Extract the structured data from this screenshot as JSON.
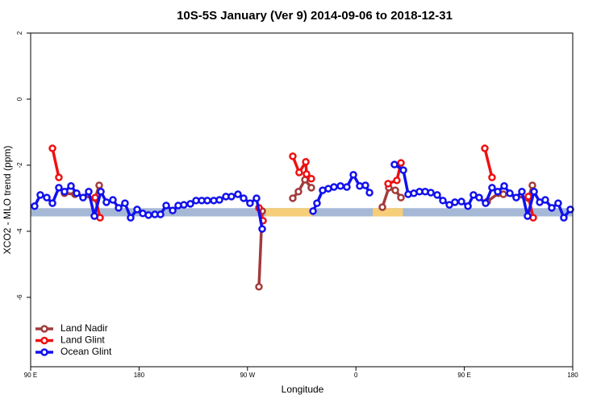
{
  "chart_data": {
    "type": "line",
    "title": "10S-5S January (Ver 9)   2014-09-06 to 2018-12-31",
    "xlabel": "Longitude",
    "ylabel": "XCO2 - MLO trend (ppm)",
    "xlim": [
      90,
      540
    ],
    "ylim": [
      -8.1,
      2
    ],
    "xticks": [
      {
        "value": 90,
        "label": "90 E"
      },
      180,
      {
        "value": 270,
        "label": "90 W"
      },
      {
        "value": 360,
        "label": "0"
      },
      {
        "value": 450,
        "label": "90 E"
      },
      {
        "value": 540,
        "label": "180"
      }
    ],
    "yticks": [
      2,
      0,
      -2,
      -4,
      -6
    ],
    "band": {
      "ylim": [
        -3.55,
        -3.3
      ],
      "color": "#a5b8d6",
      "land_color": "#f6cd78",
      "land_regions": [
        [
          285,
          324
        ],
        [
          374,
          399
        ]
      ]
    },
    "legend": "bottom-left",
    "series": [
      {
        "name": "Land Nadir",
        "color": "#a23b3b",
        "x": [
          118.1,
          126.8,
          143.6,
          146.9,
          null,
          279.5,
          282.2,
          null,
          307.6,
          312.3,
          317.7,
          323.0,
          null,
          382.0,
          387.3,
          392.7,
          397.4,
          null,
          469.0,
          478.4,
          482.4,
          503.2,
          506.5
        ],
        "values": [
          -2.85,
          -2.88,
          -3.0,
          -2.61,
          null,
          -5.68,
          -3.39,
          null,
          -3.0,
          -2.8,
          -2.44,
          -2.68,
          null,
          -3.27,
          -2.68,
          -2.76,
          -2.98,
          null,
          -3.1,
          -2.85,
          -2.88,
          -3.0,
          -2.61
        ]
      },
      {
        "name": "Land Glint",
        "color": "#ee1111",
        "x": [
          108.1,
          113.4,
          null,
          143.6,
          147.6,
          null,
          279.5,
          282.9,
          null,
          307.6,
          312.9,
          318.4,
          319.0,
          323.0,
          null,
          386.7,
          394.0,
          397.4,
          null,
          467.0,
          473.0,
          null,
          503.2,
          507.2
        ],
        "values": [
          -1.49,
          -2.37,
          null,
          -2.98,
          -3.59,
          null,
          -3.29,
          -3.68,
          null,
          -1.73,
          -2.22,
          -1.9,
          -2.27,
          -2.41,
          null,
          -2.56,
          -2.46,
          -1.93,
          null,
          -1.49,
          -2.37,
          null,
          -2.95,
          -3.59
        ]
      },
      {
        "name": "Ocean Glint",
        "color": "#1111ee",
        "x": [
          93.3,
          98.0,
          103.4,
          108.1,
          113.4,
          118.1,
          123.5,
          128.2,
          133.5,
          138.2,
          142.9,
          148.3,
          152.9,
          158.3,
          163.0,
          168.3,
          173.0,
          178.4,
          183.1,
          187.8,
          193.1,
          197.8,
          202.5,
          207.9,
          212.5,
          217.2,
          222.6,
          227.3,
          232.0,
          236.7,
          242.0,
          246.7,
          252.1,
          256.7,
          262.1,
          266.8,
          272.1,
          277.5,
          282.2,
          null,
          324.4,
          327.7,
          332.4,
          337.1,
          341.8,
          347.2,
          352.5,
          357.9,
          363.2,
          367.9,
          371.3,
          null,
          392.0,
          399.4,
          403.4,
          408.1,
          412.8,
          417.5,
          422.2,
          427.5,
          432.2,
          437.6,
          442.2,
          447.6,
          453.0,
          457.6,
          462.3,
          467.7,
          473.0,
          477.7,
          483.1,
          487.8,
          493.1,
          497.8,
          502.5,
          507.9,
          512.6,
          517.2,
          522.6,
          527.9,
          532.6,
          538.0
        ],
        "values": [
          -3.24,
          -2.9,
          -2.98,
          -3.15,
          -2.68,
          -2.8,
          -2.63,
          -2.85,
          -2.98,
          -2.8,
          -3.54,
          -2.8,
          -3.12,
          -3.05,
          -3.29,
          -3.15,
          -3.59,
          -3.34,
          -3.46,
          -3.51,
          -3.49,
          -3.49,
          -3.22,
          -3.37,
          -3.22,
          -3.2,
          -3.17,
          -3.07,
          -3.07,
          -3.07,
          -3.07,
          -3.05,
          -2.95,
          -2.95,
          -2.88,
          -3.0,
          -3.15,
          -3.0,
          -3.93,
          null,
          -3.39,
          -3.15,
          -2.76,
          -2.71,
          -2.66,
          -2.63,
          -2.66,
          -2.29,
          -2.63,
          -2.61,
          -2.83,
          null,
          -1.98,
          -2.15,
          -2.88,
          -2.85,
          -2.8,
          -2.8,
          -2.83,
          -2.9,
          -3.07,
          -3.2,
          -3.12,
          -3.1,
          -3.24,
          -2.9,
          -2.98,
          -3.15,
          -2.68,
          -2.8,
          -2.63,
          -2.85,
          -2.98,
          -2.8,
          -3.54,
          -2.8,
          -3.12,
          -3.05,
          -3.29,
          -3.15,
          -3.59,
          -3.34
        ]
      }
    ]
  }
}
